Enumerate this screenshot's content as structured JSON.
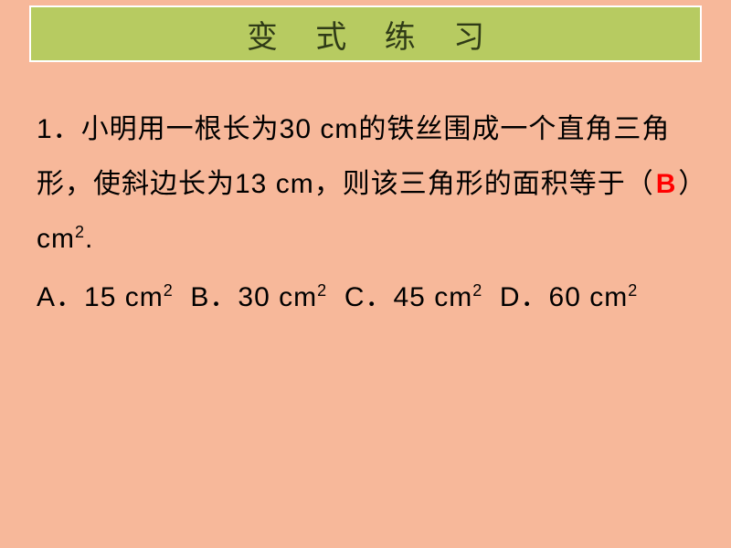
{
  "slide": {
    "background_color": "#f7b89a",
    "header": {
      "title": "变 式 练 习",
      "background_color": "#b7cb61",
      "border_color": "#ffffff",
      "text_color": "#2f3b17"
    },
    "question": {
      "number": "1．",
      "text_part1": "小明用一根长为30 cm的铁丝围成一个直角三角形，使斜边长为13 cm，则该三角形的面积等于（",
      "answer": "B",
      "answer_color": "#ff0000",
      "text_part2": "）cm",
      "text_part3": "."
    },
    "options": {
      "A": {
        "label": "A．",
        "value": "15 cm"
      },
      "B": {
        "label": "B．",
        "value": "30 cm"
      },
      "C": {
        "label": "C．",
        "value": "45 cm"
      },
      "D": {
        "label": "D．",
        "value": "60 cm"
      },
      "exp": "2"
    }
  }
}
